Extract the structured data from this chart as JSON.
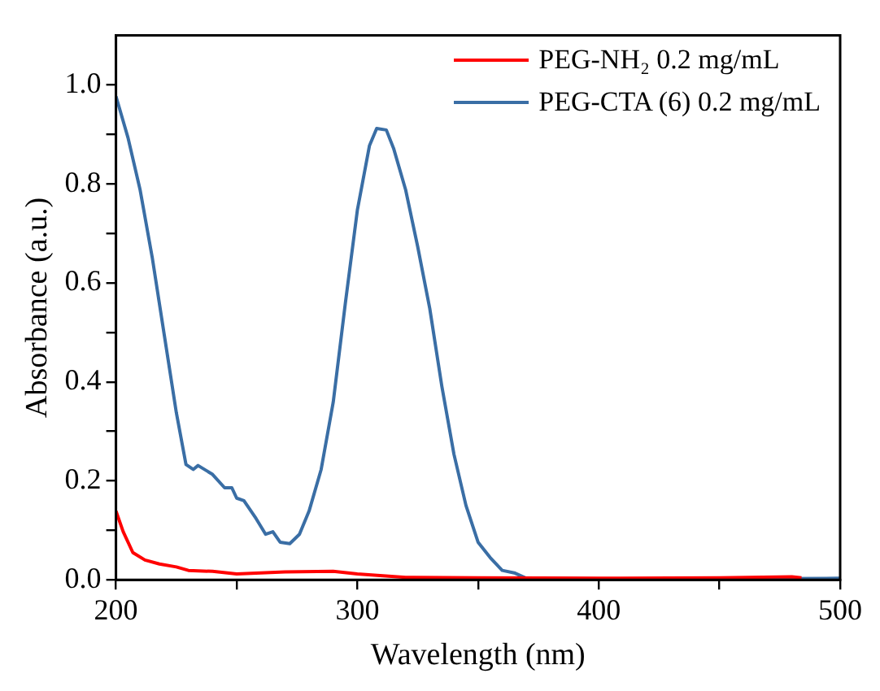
{
  "chart_data": {
    "type": "line",
    "xlabel": "Wavelength (nm)",
    "ylabel": "Absorbance (a.u.)",
    "xlim": [
      200,
      500
    ],
    "ylim": [
      0,
      1.1
    ],
    "xticks": [
      200,
      {
        "value": 250,
        "label": null
      },
      300,
      {
        "value": 350,
        "label": null
      },
      400,
      {
        "value": 450,
        "label": null
      },
      500
    ],
    "yticks": [
      {
        "value": 0,
        "label": "0.0"
      },
      {
        "value": 0.1,
        "label": null
      },
      0.2,
      {
        "value": 0.3,
        "label": null
      },
      0.4,
      {
        "value": 0.5,
        "label": null
      },
      0.6,
      {
        "value": 0.7,
        "label": null
      },
      0.8,
      {
        "value": 0.9,
        "label": null
      },
      {
        "value": 1,
        "label": "1.0"
      }
    ],
    "grid": false,
    "legend": "top right",
    "marker": "none",
    "line_style": "solid",
    "series": [
      {
        "name": "PEG-NH₂ 0.2 mg/mL",
        "color": "#ff0000",
        "x": [
          200,
          203,
          207,
          212,
          218,
          225,
          230,
          240,
          250,
          260,
          270,
          290,
          300,
          320,
          350,
          400,
          450,
          480,
          484
        ],
        "values": [
          0.139,
          0.097,
          0.055,
          0.04,
          0.032,
          0.026,
          0.019,
          0.017,
          0.012,
          0.014,
          0.016,
          0.017,
          0.012,
          0.005,
          0.004,
          0.003,
          0.004,
          0.006,
          0.004
        ]
      },
      {
        "name": "PEG-CTA (6) 0.2 mg/mL",
        "color": "#3a6ea5",
        "x": [
          200,
          205,
          210,
          215,
          220,
          225,
          229,
          232,
          234,
          240,
          245,
          248,
          250,
          253,
          258,
          262,
          265,
          268,
          272,
          276,
          280,
          285,
          290,
          295,
          300,
          305,
          308,
          312,
          315,
          320,
          325,
          330,
          335,
          340,
          345,
          350,
          355,
          360,
          365,
          370,
          400,
          450,
          500
        ],
        "values": [
          0.977,
          0.893,
          0.788,
          0.652,
          0.495,
          0.338,
          0.233,
          0.223,
          0.231,
          0.213,
          0.186,
          0.186,
          0.165,
          0.16,
          0.124,
          0.092,
          0.097,
          0.076,
          0.073,
          0.092,
          0.139,
          0.223,
          0.359,
          0.558,
          0.747,
          0.877,
          0.912,
          0.909,
          0.872,
          0.788,
          0.673,
          0.548,
          0.391,
          0.254,
          0.15,
          0.076,
          0.045,
          0.019,
          0.014,
          0.003,
          0.002,
          0.002,
          0.003
        ]
      }
    ]
  }
}
